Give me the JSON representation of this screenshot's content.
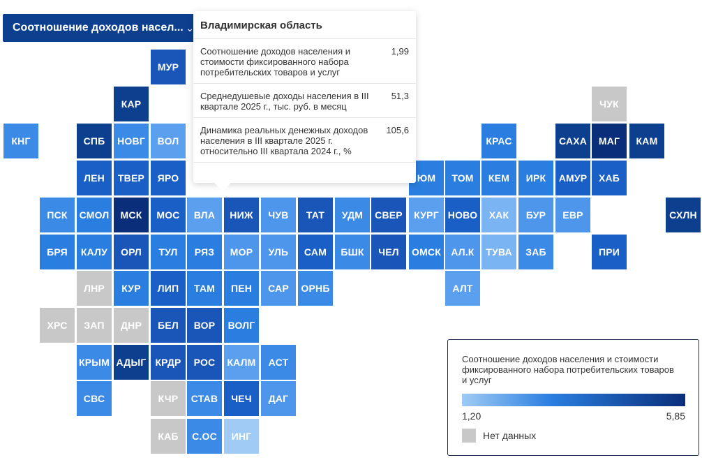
{
  "selector": {
    "label": "Соотношение доходов насел...",
    "icon": "chevron-down-icon"
  },
  "tooltip": {
    "region": "Владимирская область",
    "rows": [
      {
        "label": "Соотношение доходов населения и стоимости фиксированного набора потребительских товаров и услуг",
        "value": "1,99"
      },
      {
        "label": "Среднедушевые доходы населения в III квартале 2025 г., тыс. руб. в месяц",
        "value": "51,3"
      },
      {
        "label": "Динамика реальных денежных доходов населения в III квартале 2025 г. относительно III квартала 2024 г., %",
        "value": "105,6"
      }
    ]
  },
  "legend": {
    "title": "Соотношение доходов населения и стоимости фиксированного набора потребительских товаров и услуг",
    "min": "1,20",
    "max": "5,85",
    "no_data": "Нет данных",
    "colors": {
      "low": "#9fcbf5",
      "mid": "#2a7ee0",
      "high": "#0a2e7a",
      "no_data": "#c8c8c8"
    }
  },
  "tiles": [
    {
      "code": "МУР",
      "color": "#1a55b8"
    },
    {
      "code": "КАР",
      "color": "#0d3f8f"
    },
    {
      "code": "ЧУК",
      "color": "#c8c8c8"
    },
    {
      "code": "КНГ",
      "color": "#3a8ae6"
    },
    {
      "code": "СПБ",
      "color": "#0d3f8f"
    },
    {
      "code": "НОВГ",
      "color": "#3a8ae6"
    },
    {
      "code": "ВОЛ",
      "color": "#5aa0ee"
    },
    {
      "code": "КРАС",
      "color": "#2a7ee0"
    },
    {
      "code": "САХА",
      "color": "#0d3f8f"
    },
    {
      "code": "МАГ",
      "color": "#0a2e7a"
    },
    {
      "code": "КАМ",
      "color": "#0d3f8f"
    },
    {
      "code": "ЛЕН",
      "color": "#1a5fc5"
    },
    {
      "code": "ТВЕР",
      "color": "#1a5fc5"
    },
    {
      "code": "ЯРО",
      "color": "#1a5fc5"
    },
    {
      "code": "ЮМ",
      "color": "#2a7ee0"
    },
    {
      "code": "ТОМ",
      "color": "#2a7ee0"
    },
    {
      "code": "КЕМ",
      "color": "#2a7ee0"
    },
    {
      "code": "ИРК",
      "color": "#2a7ee0"
    },
    {
      "code": "АМУР",
      "color": "#1a5fc5"
    },
    {
      "code": "ХАБ",
      "color": "#1a5fc5"
    },
    {
      "code": "ПСК",
      "color": "#3a8ae6"
    },
    {
      "code": "СМОЛ",
      "color": "#2a7ee0"
    },
    {
      "code": "МСК",
      "color": "#0a2e7a"
    },
    {
      "code": "МОС",
      "color": "#1a5fc5"
    },
    {
      "code": "ВЛА",
      "color": "#5aa0ee"
    },
    {
      "code": "НИЖ",
      "color": "#1a55b8"
    },
    {
      "code": "ЧУВ",
      "color": "#4d96eb"
    },
    {
      "code": "ТАТ",
      "color": "#1a55b8"
    },
    {
      "code": "УДМ",
      "color": "#3a8ae6"
    },
    {
      "code": "СВЕР",
      "color": "#1a55b8"
    },
    {
      "code": "КУРГ",
      "color": "#5aa0ee"
    },
    {
      "code": "НОВО",
      "color": "#1a5fc5"
    },
    {
      "code": "ХАК",
      "color": "#7ab4f2"
    },
    {
      "code": "БУР",
      "color": "#4d96eb"
    },
    {
      "code": "ЕВР",
      "color": "#4d96eb"
    },
    {
      "code": "СХЛН",
      "color": "#0d3f8f"
    },
    {
      "code": "БРЯ",
      "color": "#2a7ee0"
    },
    {
      "code": "КАЛУ",
      "color": "#2a7ee0"
    },
    {
      "code": "ОРЛ",
      "color": "#1a55b8"
    },
    {
      "code": "ТУЛ",
      "color": "#2a7ee0"
    },
    {
      "code": "РЯЗ",
      "color": "#2a7ee0"
    },
    {
      "code": "МОР",
      "color": "#4d96eb"
    },
    {
      "code": "УЛЬ",
      "color": "#4d96eb"
    },
    {
      "code": "САМ",
      "color": "#1a5fc5"
    },
    {
      "code": "БШК",
      "color": "#3a8ae6"
    },
    {
      "code": "ЧЕЛ",
      "color": "#1a55b8"
    },
    {
      "code": "ОМСК",
      "color": "#2a7ee0"
    },
    {
      "code": "АЛ.К",
      "color": "#4d96eb"
    },
    {
      "code": "ТУВА",
      "color": "#7ab4f2"
    },
    {
      "code": "ЗАБ",
      "color": "#3a8ae6"
    },
    {
      "code": "ПРИ",
      "color": "#1a5fc5"
    },
    {
      "code": "ЛНР",
      "color": "#c8c8c8"
    },
    {
      "code": "КУР",
      "color": "#2a7ee0"
    },
    {
      "code": "ЛИП",
      "color": "#1a5fc5"
    },
    {
      "code": "ТАМ",
      "color": "#2a7ee0"
    },
    {
      "code": "ПЕН",
      "color": "#2a7ee0"
    },
    {
      "code": "САР",
      "color": "#4d96eb"
    },
    {
      "code": "ОРНБ",
      "color": "#3a8ae6"
    },
    {
      "code": "АЛТ",
      "color": "#5aa0ee"
    },
    {
      "code": "ХРС",
      "color": "#c8c8c8"
    },
    {
      "code": "ЗАП",
      "color": "#c8c8c8"
    },
    {
      "code": "ДНР",
      "color": "#c8c8c8"
    },
    {
      "code": "БЕЛ",
      "color": "#1a55b8"
    },
    {
      "code": "ВОР",
      "color": "#1a55b8"
    },
    {
      "code": "ВОЛГ",
      "color": "#2a7ee0"
    },
    {
      "code": "КРЫМ",
      "color": "#3a8ae6"
    },
    {
      "code": "АДЫГ",
      "color": "#0d3f8f"
    },
    {
      "code": "КРДР",
      "color": "#1a55b8"
    },
    {
      "code": "РОС",
      "color": "#1a55b8"
    },
    {
      "code": "КАЛМ",
      "color": "#5aa0ee"
    },
    {
      "code": "АСТ",
      "color": "#3a8ae6"
    },
    {
      "code": "СВС",
      "color": "#3a8ae6"
    },
    {
      "code": "КЧР",
      "color": "#c8c8c8"
    },
    {
      "code": "СТАВ",
      "color": "#3a8ae6"
    },
    {
      "code": "ЧЕЧ",
      "color": "#1a5fc5"
    },
    {
      "code": "ДАГ",
      "color": "#4d96eb"
    },
    {
      "code": "КАБ",
      "color": "#c8c8c8"
    },
    {
      "code": "С.ОС",
      "color": "#3a8ae6"
    },
    {
      "code": "ИНГ",
      "color": "#9fcbf5"
    }
  ]
}
